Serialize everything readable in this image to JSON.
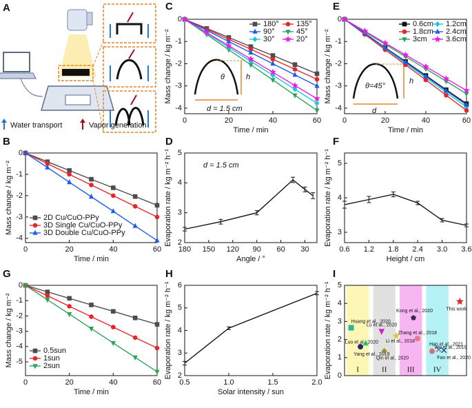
{
  "schematic": {
    "label": "A",
    "legend": [
      "Water transport",
      "Vapor generation"
    ]
  },
  "chart_data": [
    {
      "panel": "C",
      "type": "line",
      "xlabel": "Time / min",
      "ylabel": "Mass change / kg m⁻²",
      "xlim": [
        0,
        60
      ],
      "ylim": [
        -4.25,
        0
      ],
      "xticks": [
        0,
        20,
        40,
        60
      ],
      "yticks": [
        0,
        -1,
        -2,
        -3,
        -4
      ],
      "x": [
        0,
        10,
        20,
        30,
        40,
        50,
        60
      ],
      "legend": "upper right",
      "legend_columns": 2,
      "annotations": [
        "θ",
        "h",
        "d = 1.5 cm"
      ],
      "series": [
        {
          "name": "180°",
          "color": "#4d4d4d",
          "marker": "square",
          "values": [
            0,
            -0.41,
            -0.82,
            -1.23,
            -1.63,
            -2.04,
            -2.45
          ]
        },
        {
          "name": "135°",
          "color": "#e8262a",
          "marker": "circle",
          "values": [
            0,
            -0.45,
            -0.9,
            -1.35,
            -1.8,
            -2.25,
            -2.7
          ]
        },
        {
          "name": "90°",
          "color": "#1e5ee6",
          "marker": "triangle",
          "values": [
            0,
            -0.5,
            -1,
            -1.5,
            -2,
            -2.5,
            -3
          ]
        },
        {
          "name": "45°",
          "color": "#2aa35a",
          "marker": "triangle-down",
          "values": [
            0,
            -0.68,
            -1.37,
            -2.05,
            -2.73,
            -3.42,
            -4.1
          ]
        },
        {
          "name": "30°",
          "color": "#18c8d8",
          "marker": "diamond",
          "values": [
            0,
            -0.63,
            -1.26,
            -1.89,
            -2.52,
            -3.15,
            -3.78
          ]
        },
        {
          "name": "20°",
          "color": "#e81ee8",
          "marker": "star",
          "values": [
            0,
            -0.6,
            -1.19,
            -1.79,
            -2.38,
            -2.98,
            -3.57
          ]
        }
      ]
    },
    {
      "panel": "E",
      "type": "line",
      "xlabel": "Time / min",
      "ylabel": "Mass change / kg m⁻²",
      "xlim": [
        0,
        60
      ],
      "ylim": [
        -4.25,
        0
      ],
      "xticks": [
        0,
        20,
        40,
        60
      ],
      "yticks": [
        0,
        -1,
        -2,
        -3,
        -4
      ],
      "x": [
        0,
        10,
        20,
        30,
        40,
        50,
        60
      ],
      "legend": "upper right",
      "legend_columns": 2,
      "annotations": [
        "θ=45°",
        "h",
        "d"
      ],
      "series": [
        {
          "name": "0.6cm",
          "color": "#111111",
          "marker": "square",
          "values": [
            0,
            -0.63,
            -1.27,
            -1.9,
            -2.53,
            -3.17,
            -3.8
          ]
        },
        {
          "name": "1.2cm",
          "color": "#18c8d8",
          "marker": "diamond",
          "values": [
            0,
            -0.66,
            -1.32,
            -1.98,
            -2.63,
            -3.29,
            -3.95
          ]
        },
        {
          "name": "1.8cm",
          "color": "#e8262a",
          "marker": "circle",
          "values": [
            0,
            -0.68,
            -1.37,
            -2.05,
            -2.73,
            -3.42,
            -4.1
          ]
        },
        {
          "name": "2.4cm",
          "color": "#1e5ee6",
          "marker": "triangle",
          "values": [
            0,
            -0.64,
            -1.28,
            -1.93,
            -2.57,
            -3.21,
            -3.85
          ]
        },
        {
          "name": "3cm",
          "color": "#2aa35a",
          "marker": "triangle-down",
          "values": [
            0,
            -0.56,
            -1.12,
            -1.68,
            -2.23,
            -2.79,
            -3.35
          ]
        },
        {
          "name": "3.6cm",
          "color": "#e81ee8",
          "marker": "star",
          "values": [
            0,
            -0.53,
            -1.07,
            -1.6,
            -2.13,
            -2.67,
            -3.2
          ]
        }
      ]
    },
    {
      "panel": "B",
      "type": "line",
      "xlabel": "Time / min",
      "ylabel": "Mass change / kg m⁻²",
      "xlim": [
        0,
        60
      ],
      "ylim": [
        -4.2,
        0
      ],
      "xticks": [
        0,
        20,
        40,
        60
      ],
      "yticks": [
        0,
        -1,
        -2,
        -3,
        -4
      ],
      "x": [
        0,
        10,
        20,
        30,
        40,
        50,
        60
      ],
      "legend": "lower left",
      "legend_columns": 1,
      "series": [
        {
          "name": "2D Cu/CuO-PPy",
          "color": "#4d4d4d",
          "marker": "square",
          "values": [
            0,
            -0.41,
            -0.82,
            -1.23,
            -1.63,
            -2.04,
            -2.45
          ]
        },
        {
          "name": "3D Single Cu/CuO-PPy",
          "color": "#e8262a",
          "marker": "circle",
          "values": [
            0,
            -0.5,
            -1,
            -1.5,
            -2,
            -2.5,
            -3
          ]
        },
        {
          "name": "3D Double Cu/CuO-PPy",
          "color": "#1e5ee6",
          "marker": "triangle",
          "values": [
            0,
            -0.68,
            -1.37,
            -2.05,
            -2.73,
            -3.42,
            -4.1
          ]
        }
      ]
    },
    {
      "panel": "D",
      "type": "line",
      "xlabel": "Angle / °",
      "ylabel": "Evaporation rate / kg m⁻² h⁻¹",
      "xlim": [
        180,
        15
      ],
      "ylim": [
        2,
        5
      ],
      "xticks": [
        180,
        150,
        120,
        90,
        60,
        30
      ],
      "yticks": [
        2,
        3,
        4,
        5
      ],
      "x": [
        180,
        135,
        90,
        45,
        30,
        20
      ],
      "values": [
        2.45,
        2.7,
        3,
        4.1,
        3.78,
        3.57
      ],
      "errors": [
        0.06,
        0.08,
        0.07,
        0.09,
        0.08,
        0.1
      ],
      "color": "#111111",
      "annotations": [
        "d = 1.5 cm"
      ]
    },
    {
      "panel": "F",
      "type": "line",
      "xlabel": "Height / cm",
      "ylabel": "Evaporation rate / kg m⁻² h⁻¹",
      "xlim": [
        0.6,
        3.6
      ],
      "ylim": [
        2.7,
        5.3
      ],
      "xticks": [
        0.6,
        1.2,
        1.8,
        2.4,
        {
          "value": 3,
          "label": "3.0"
        },
        3.6
      ],
      "yticks": [
        3,
        4,
        5
      ],
      "x": [
        0.6,
        1.2,
        1.8,
        2.4,
        3,
        3.6
      ],
      "values": [
        3.8,
        3.95,
        4.1,
        3.85,
        3.35,
        3.2
      ],
      "errors": [
        0.1,
        0.09,
        0.07,
        0.05,
        0.05,
        0.04
      ],
      "color": "#111111"
    },
    {
      "panel": "G",
      "type": "line",
      "xlabel": "Time / min",
      "ylabel": "Mass change / kg m⁻²",
      "xlim": [
        0,
        60
      ],
      "ylim": [
        -5.9,
        0
      ],
      "xticks": [
        0,
        20,
        40,
        60
      ],
      "yticks": [
        0,
        -1,
        -2,
        -3,
        -4,
        -5
      ],
      "x": [
        0,
        10,
        20,
        30,
        40,
        50,
        60
      ],
      "legend": "lower left",
      "legend_columns": 1,
      "series": [
        {
          "name": "0.5sun",
          "color": "#4d4d4d",
          "marker": "square",
          "values": [
            0,
            -0.43,
            -0.85,
            -1.28,
            -1.7,
            -2.13,
            -2.55
          ]
        },
        {
          "name": "1sun",
          "color": "#e8262a",
          "marker": "circle",
          "values": [
            0,
            -0.68,
            -1.37,
            -2.05,
            -2.73,
            -3.42,
            -4.1
          ]
        },
        {
          "name": "2sun",
          "color": "#2aa35a",
          "marker": "triangle-down",
          "values": [
            0,
            -0.94,
            -1.88,
            -2.83,
            -3.77,
            -4.71,
            -5.65
          ]
        }
      ]
    },
    {
      "panel": "H",
      "type": "line",
      "xlabel": "Solar intensity / sun",
      "ylabel": "Evaporation rate / kg m⁻² h⁻¹",
      "xlim": [
        0.5,
        2
      ],
      "ylim": [
        2,
        6
      ],
      "xticks": [
        0.5,
        {
          "value": 1,
          "label": "1.0"
        },
        1.5,
        {
          "value": 2,
          "label": "2.0"
        }
      ],
      "yticks": [
        2,
        3,
        4,
        5,
        6
      ],
      "x": [
        0.5,
        1,
        2
      ],
      "values": [
        2.55,
        4.1,
        5.65
      ],
      "errors": [
        0.08,
        0.06,
        0.07
      ],
      "color": "#111111"
    },
    {
      "panel": "I",
      "type": "scatter",
      "ylabel": "Evaporation rate / kg m⁻² h⁻¹",
      "xlim": [
        0,
        4.6
      ],
      "ylim": [
        0,
        5
      ],
      "yticks": [
        0,
        1,
        2,
        3,
        4,
        5
      ],
      "groups": [
        "I",
        "II",
        "III",
        "IV"
      ],
      "group_colors": [
        "#fdf6a8",
        "#dcdcdc",
        "#f6a8ef",
        "#a8f0f4"
      ],
      "labels": [
        "Huang et al., 2020",
        "Luo et al., 2020",
        "Yang et al., 2019",
        "Lu et al., 2020",
        "Li et al., 2018",
        "Qin et al., 2020",
        "Kong et al., 2020",
        "Zhang et al., 2018",
        "Han et al., 2021",
        "Wu et al., 2019",
        "Fan et al., 2020",
        "This work"
      ],
      "x": [
        0.25,
        0.8,
        0.6,
        1.4,
        1.95,
        1.5,
        2.6,
        2.75,
        3.3,
        3.55,
        3.75,
        4.35
      ],
      "values": [
        2.65,
        1.8,
        1.6,
        2.45,
        2.2,
        1.35,
        3.2,
        2.05,
        1.35,
        1.45,
        1.4,
        4.1
      ],
      "colors": [
        "#2bb5a0",
        "#3cc47a",
        "#1f2a6b",
        "#d01fc8",
        "#d8c83a",
        "#9a8a3a",
        "#3a2a4a",
        "#e27b8a",
        "#e06a7a",
        "#7a6a9a",
        "#2a3a6a",
        "#e8262a"
      ],
      "markers": [
        "square",
        "triangle",
        "circle",
        "triangle-down",
        "star",
        "diamond",
        "pentagon",
        "circle",
        "circle",
        "cross",
        "cross",
        "star"
      ]
    }
  ]
}
